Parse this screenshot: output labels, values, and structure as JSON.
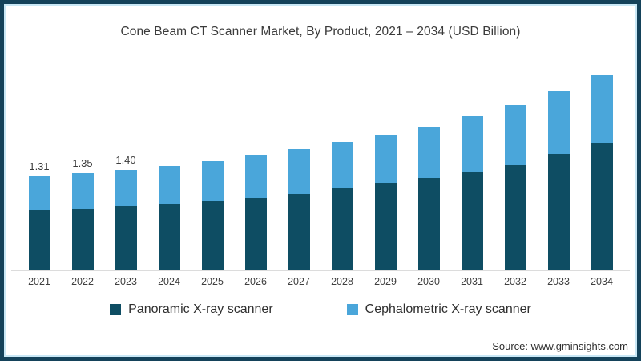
{
  "page": {
    "source": "Source: www.gminsights.com"
  },
  "chart_data": {
    "type": "bar",
    "stacked": true,
    "title": "Cone Beam CT Scanner Market, By Product, 2021 – 2034 (USD Billion)",
    "unit": "USD Billion",
    "categories": [
      "2021",
      "2022",
      "2023",
      "2024",
      "2025",
      "2026",
      "2027",
      "2028",
      "2029",
      "2030",
      "2031",
      "2032",
      "2033",
      "2034"
    ],
    "series": [
      {
        "name": "Panoramic X-ray scanner",
        "color": "#0e4d63",
        "values": [
          0.84,
          0.86,
          0.9,
          0.93,
          0.96,
          1.01,
          1.06,
          1.15,
          1.22,
          1.29,
          1.38,
          1.47,
          1.62,
          1.78
        ]
      },
      {
        "name": "Cephalometric X-ray scanner",
        "color": "#4aa6da",
        "values": [
          0.47,
          0.49,
          0.5,
          0.53,
          0.56,
          0.6,
          0.63,
          0.64,
          0.67,
          0.72,
          0.77,
          0.84,
          0.88,
          0.94
        ]
      }
    ],
    "totals": [
      1.31,
      1.35,
      1.4,
      1.46,
      1.52,
      1.61,
      1.69,
      1.79,
      1.89,
      2.01,
      2.15,
      2.31,
      2.5,
      2.72
    ],
    "bar_labels": [
      "1.31",
      "1.35",
      "1.40",
      null,
      null,
      null,
      null,
      null,
      null,
      null,
      null,
      null,
      null,
      null
    ],
    "ylim": [
      0,
      2.9
    ],
    "grid": false,
    "legend_position": "bottom"
  }
}
